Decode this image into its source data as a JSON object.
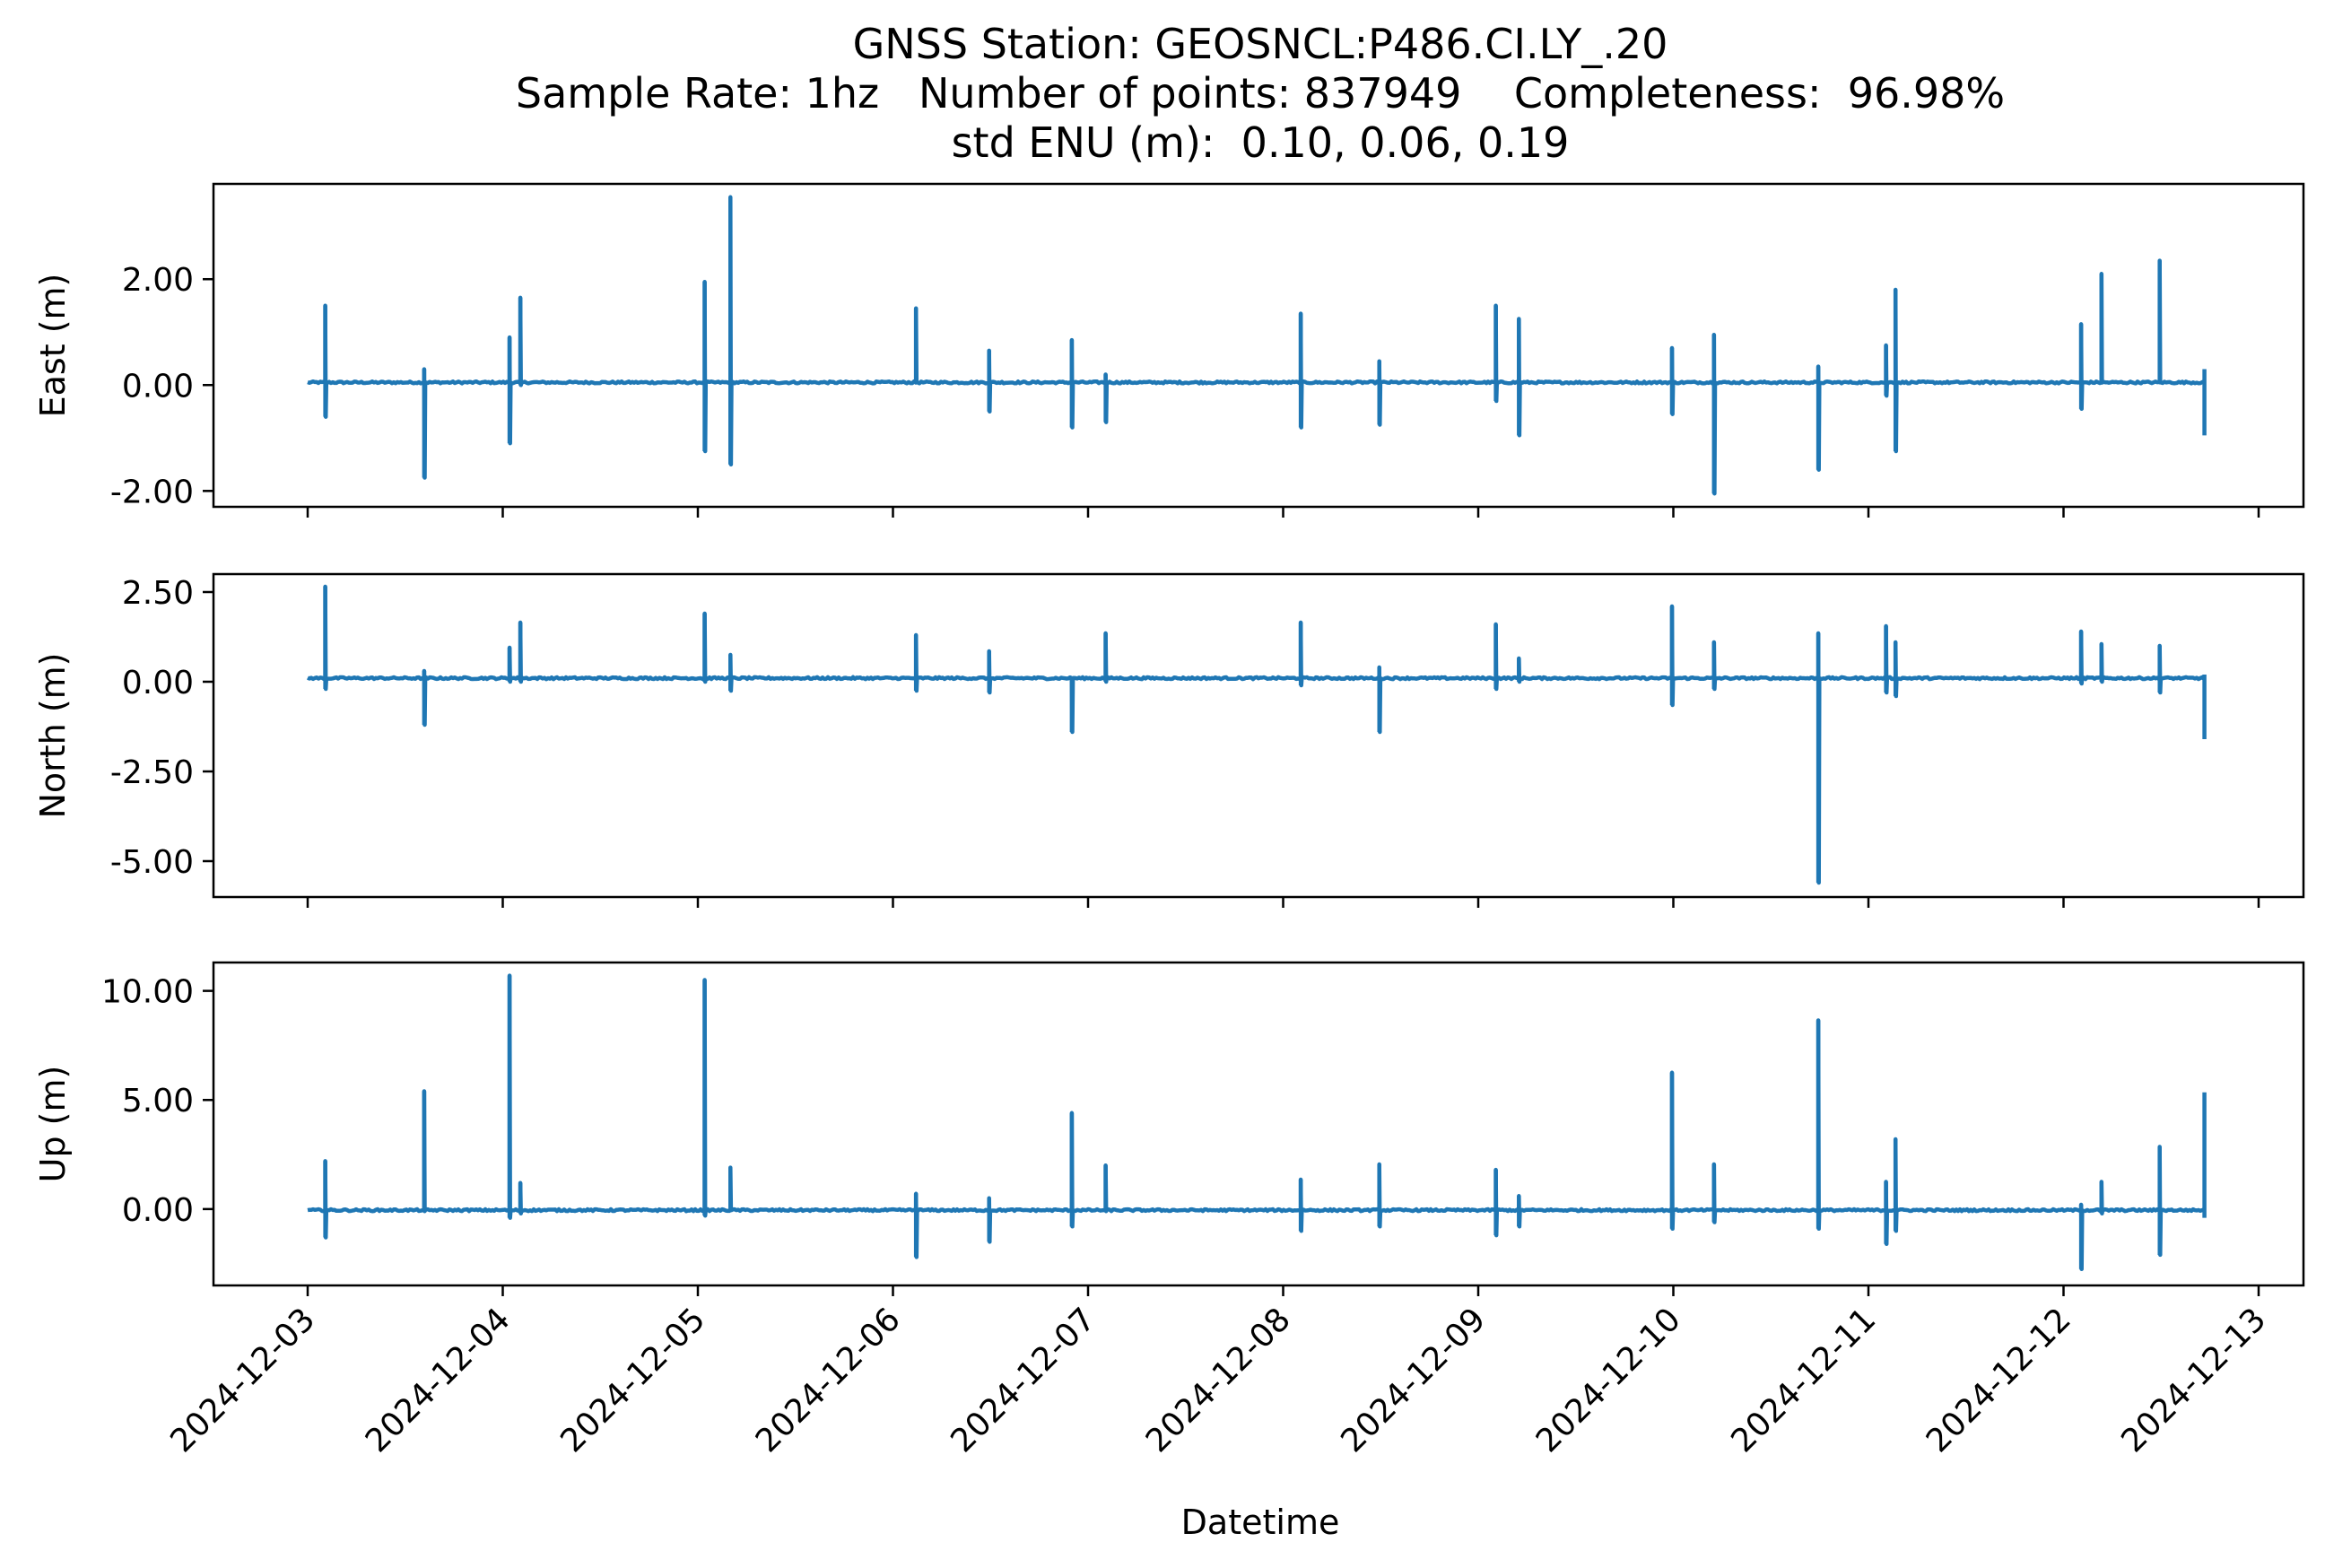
{
  "title": {
    "line1": "GNSS Station: GEOSNCL:P486.CI.LY_.20",
    "line2": "Sample Rate: 1hz   Number of points: 837949    Completeness:  96.98%",
    "line3": "std ENU (m):  0.10, 0.06, 0.19"
  },
  "colors": {
    "series": "#1f77b4",
    "axes": "#000000",
    "background": "#ffffff"
  },
  "chart_data": {
    "type": "line",
    "xlabel": "Datetime",
    "x_range": [
      "2024-12-03",
      "2024-12-13"
    ],
    "x_ticks": [
      "2024-12-03",
      "2024-12-04",
      "2024-12-05",
      "2024-12-06",
      "2024-12-07",
      "2024-12-08",
      "2024-12-09",
      "2024-12-10",
      "2024-12-11",
      "2024-12-12",
      "2024-12-13"
    ],
    "data_range": [
      "2024-12-03T00:00",
      "2024-12-12T17:20"
    ],
    "grid": false,
    "panels": [
      {
        "name": "east",
        "ylabel": "East (m)",
        "ylim": [
          -2.3,
          3.8
        ],
        "yticks": [
          {
            "value": -2,
            "label": "-2.00"
          },
          {
            "value": 0,
            "label": "0.00"
          },
          {
            "value": 2,
            "label": "2.00"
          }
        ],
        "baseline": 0.05,
        "spikes": [
          {
            "t": "2024-12-03T02:10",
            "hi": 1.5,
            "lo": -0.6
          },
          {
            "t": "2024-12-03T14:20",
            "hi": 0.3,
            "lo": -1.75
          },
          {
            "t": "2024-12-04T00:50",
            "hi": 0.9,
            "lo": -1.1
          },
          {
            "t": "2024-12-04T02:10",
            "hi": 1.65,
            "lo": 0.0
          },
          {
            "t": "2024-12-05T00:50",
            "hi": 1.95,
            "lo": -1.25
          },
          {
            "t": "2024-12-05T04:00",
            "hi": 3.55,
            "lo": -1.5
          },
          {
            "t": "2024-12-06T02:50",
            "hi": 1.45,
            "lo": 0.05
          },
          {
            "t": "2024-12-06T11:50",
            "hi": 0.65,
            "lo": -0.5
          },
          {
            "t": "2024-12-06T22:00",
            "hi": 0.85,
            "lo": -0.8
          },
          {
            "t": "2024-12-07T02:10",
            "hi": 0.2,
            "lo": -0.7
          },
          {
            "t": "2024-12-08T02:10",
            "hi": 1.35,
            "lo": -0.8
          },
          {
            "t": "2024-12-08T11:50",
            "hi": 0.45,
            "lo": -0.75
          },
          {
            "t": "2024-12-09T02:10",
            "hi": 1.5,
            "lo": -0.3
          },
          {
            "t": "2024-12-09T05:00",
            "hi": 1.25,
            "lo": -0.95
          },
          {
            "t": "2024-12-09T23:50",
            "hi": 0.7,
            "lo": -0.55
          },
          {
            "t": "2024-12-10T05:00",
            "hi": 0.95,
            "lo": -2.05
          },
          {
            "t": "2024-12-10T17:50",
            "hi": 0.35,
            "lo": -1.6
          },
          {
            "t": "2024-12-11T02:10",
            "hi": 0.75,
            "lo": -0.2
          },
          {
            "t": "2024-12-11T03:20",
            "hi": 1.8,
            "lo": -1.25
          },
          {
            "t": "2024-12-12T02:10",
            "hi": 1.15,
            "lo": -0.45
          },
          {
            "t": "2024-12-12T04:40",
            "hi": 2.1,
            "lo": 0.05
          },
          {
            "t": "2024-12-12T11:50",
            "hi": 2.35,
            "lo": 0.05
          },
          {
            "t": "2024-12-12T17:20",
            "hi": 0.3,
            "lo": -0.95
          }
        ]
      },
      {
        "name": "north",
        "ylabel": "North (m)",
        "ylim": [
          -6.0,
          3.0
        ],
        "yticks": [
          {
            "value": -5,
            "label": "-5.00"
          },
          {
            "value": -2.5,
            "label": "-2.50"
          },
          {
            "value": 0,
            "label": "0.00"
          },
          {
            "value": 2.5,
            "label": "2.50"
          }
        ],
        "baseline": 0.1,
        "spikes": [
          {
            "t": "2024-12-03T02:10",
            "hi": 2.65,
            "lo": -0.2
          },
          {
            "t": "2024-12-03T14:20",
            "hi": 0.3,
            "lo": -1.2
          },
          {
            "t": "2024-12-04T00:50",
            "hi": 0.95,
            "lo": 0.0
          },
          {
            "t": "2024-12-04T02:10",
            "hi": 1.65,
            "lo": 0.0
          },
          {
            "t": "2024-12-05T00:50",
            "hi": 1.9,
            "lo": 0.0
          },
          {
            "t": "2024-12-05T04:00",
            "hi": 0.75,
            "lo": -0.25
          },
          {
            "t": "2024-12-06T02:50",
            "hi": 1.3,
            "lo": -0.25
          },
          {
            "t": "2024-12-06T11:50",
            "hi": 0.85,
            "lo": -0.3
          },
          {
            "t": "2024-12-06T22:00",
            "hi": 0.1,
            "lo": -1.4
          },
          {
            "t": "2024-12-07T02:10",
            "hi": 1.35,
            "lo": 0.0
          },
          {
            "t": "2024-12-08T02:10",
            "hi": 1.65,
            "lo": -0.1
          },
          {
            "t": "2024-12-08T11:50",
            "hi": 0.4,
            "lo": -1.4
          },
          {
            "t": "2024-12-09T02:10",
            "hi": 1.6,
            "lo": -0.2
          },
          {
            "t": "2024-12-09T05:00",
            "hi": 0.65,
            "lo": 0.0
          },
          {
            "t": "2024-12-09T23:50",
            "hi": 2.1,
            "lo": -0.65
          },
          {
            "t": "2024-12-10T05:00",
            "hi": 1.1,
            "lo": -0.2
          },
          {
            "t": "2024-12-10T17:50",
            "hi": 1.35,
            "lo": -5.6
          },
          {
            "t": "2024-12-11T02:10",
            "hi": 1.55,
            "lo": -0.3
          },
          {
            "t": "2024-12-11T03:20",
            "hi": 1.1,
            "lo": -0.4
          },
          {
            "t": "2024-12-12T02:10",
            "hi": 1.4,
            "lo": -0.05
          },
          {
            "t": "2024-12-12T04:40",
            "hi": 1.05,
            "lo": 0.0
          },
          {
            "t": "2024-12-12T11:50",
            "hi": 1.0,
            "lo": -0.3
          },
          {
            "t": "2024-12-12T17:20",
            "hi": 0.2,
            "lo": -1.6
          }
        ]
      },
      {
        "name": "up",
        "ylabel": "Up (m)",
        "ylim": [
          -3.5,
          11.3
        ],
        "yticks": [
          {
            "value": 0,
            "label": "0.00"
          },
          {
            "value": 5,
            "label": "5.00"
          },
          {
            "value": 10,
            "label": "10.00"
          }
        ],
        "baseline": -0.05,
        "spikes": [
          {
            "t": "2024-12-03T02:10",
            "hi": 2.2,
            "lo": -1.3
          },
          {
            "t": "2024-12-03T14:20",
            "hi": 5.4,
            "lo": -0.1
          },
          {
            "t": "2024-12-04T00:50",
            "hi": 10.7,
            "lo": -0.4
          },
          {
            "t": "2024-12-04T02:10",
            "hi": 1.2,
            "lo": -0.2
          },
          {
            "t": "2024-12-05T00:50",
            "hi": 10.5,
            "lo": -0.3
          },
          {
            "t": "2024-12-05T04:00",
            "hi": 1.9,
            "lo": 0.0
          },
          {
            "t": "2024-12-06T02:50",
            "hi": 0.7,
            "lo": -2.2
          },
          {
            "t": "2024-12-06T11:50",
            "hi": 0.5,
            "lo": -1.5
          },
          {
            "t": "2024-12-06T22:00",
            "hi": 4.4,
            "lo": -0.8
          },
          {
            "t": "2024-12-07T02:10",
            "hi": 2.0,
            "lo": -0.1
          },
          {
            "t": "2024-12-08T02:10",
            "hi": 1.35,
            "lo": -1.0
          },
          {
            "t": "2024-12-08T11:50",
            "hi": 2.05,
            "lo": -0.8
          },
          {
            "t": "2024-12-09T02:10",
            "hi": 1.8,
            "lo": -1.2
          },
          {
            "t": "2024-12-09T05:00",
            "hi": 0.6,
            "lo": -0.8
          },
          {
            "t": "2024-12-09T23:50",
            "hi": 6.25,
            "lo": -0.9
          },
          {
            "t": "2024-12-10T05:00",
            "hi": 2.05,
            "lo": -0.6
          },
          {
            "t": "2024-12-10T17:50",
            "hi": 8.65,
            "lo": -0.9
          },
          {
            "t": "2024-12-11T02:10",
            "hi": 1.25,
            "lo": -1.6
          },
          {
            "t": "2024-12-11T03:20",
            "hi": 3.2,
            "lo": -1.0
          },
          {
            "t": "2024-12-12T02:10",
            "hi": 0.2,
            "lo": -2.75
          },
          {
            "t": "2024-12-12T04:40",
            "hi": 1.25,
            "lo": -0.2
          },
          {
            "t": "2024-12-12T11:50",
            "hi": 2.85,
            "lo": -2.1
          },
          {
            "t": "2024-12-12T17:20",
            "hi": 5.35,
            "lo": -0.4
          }
        ]
      }
    ]
  }
}
